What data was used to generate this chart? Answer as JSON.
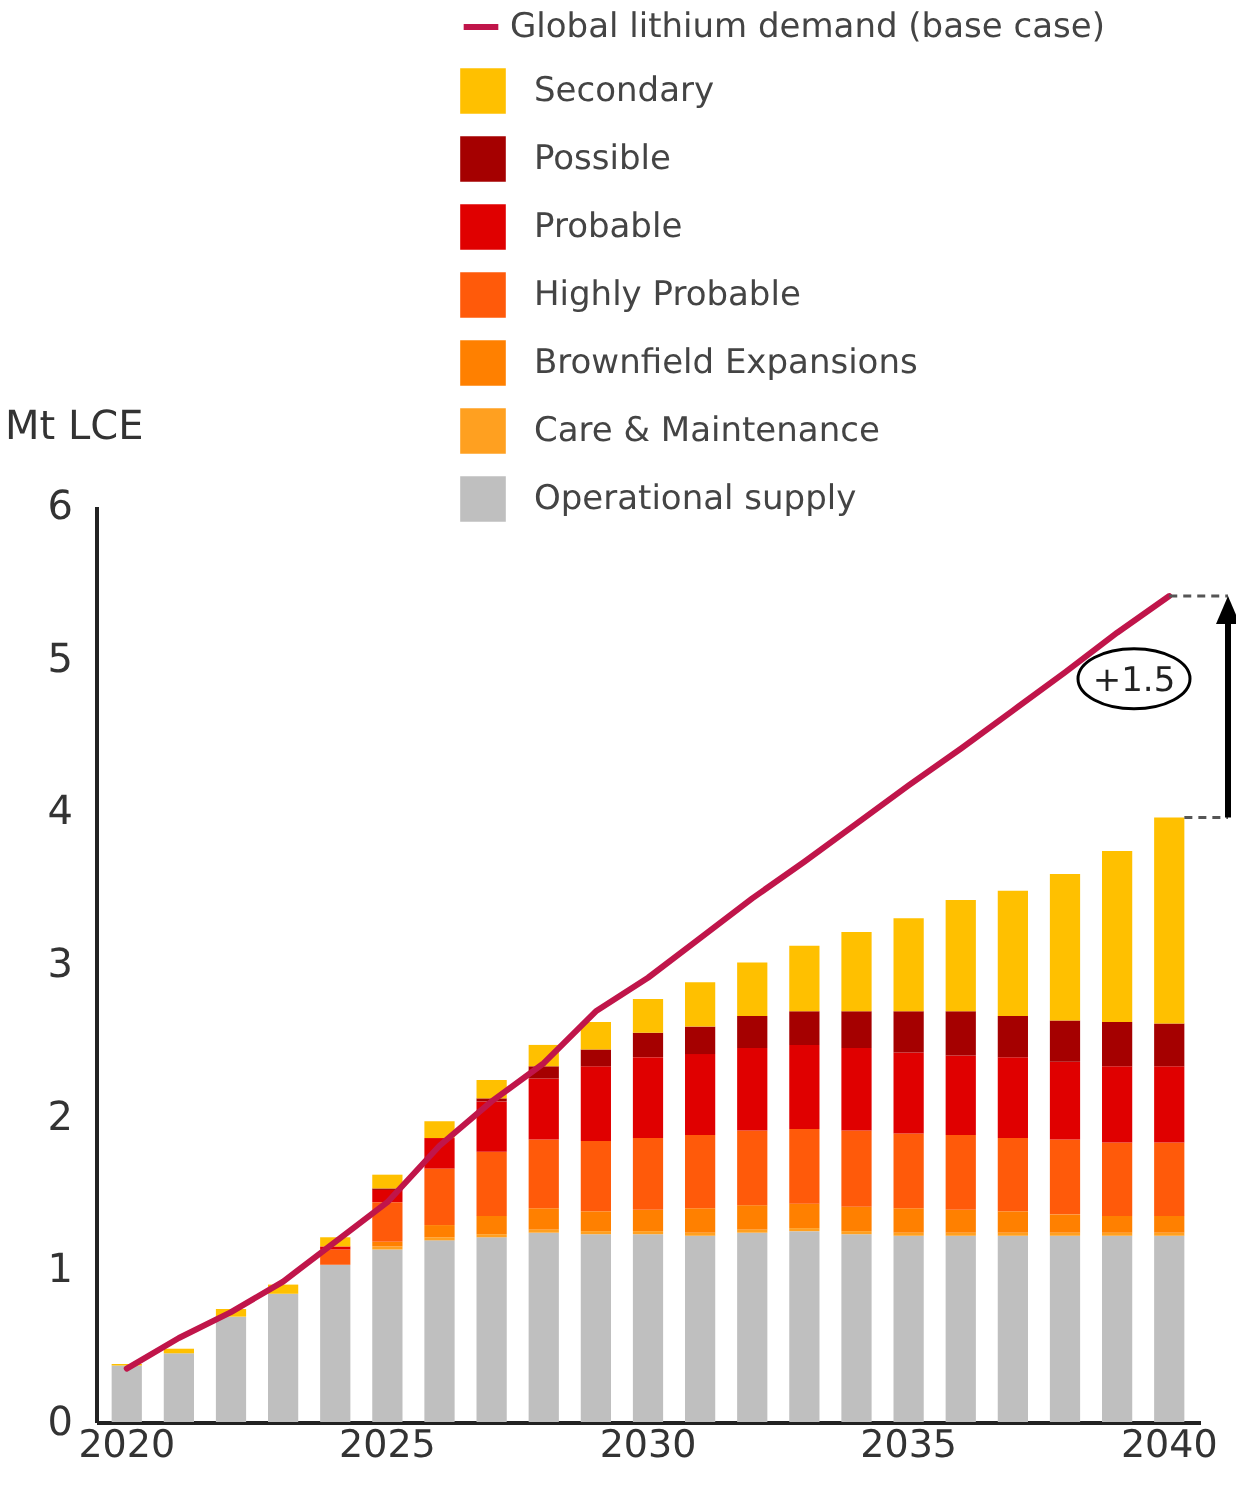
{
  "chart_data": {
    "type": "bar",
    "stacked": true,
    "ylabel": "Mt LCE",
    "ylim": [
      0,
      6
    ],
    "yticks": [
      0,
      1,
      2,
      3,
      4,
      5,
      6
    ],
    "grid": false,
    "legend": "top right",
    "annotations": [
      "+1.5"
    ],
    "categories": [
      "2020",
      null,
      null,
      null,
      null,
      "2025",
      null,
      null,
      null,
      null,
      "2030",
      null,
      null,
      null,
      null,
      "2035",
      null,
      null,
      null,
      null,
      "2040"
    ],
    "series": [
      {
        "name": "Operational supply",
        "color": "#bfbfbf",
        "values": [
          0.37,
          0.45,
          0.69,
          0.84,
          1.03,
          1.13,
          1.19,
          1.21,
          1.24,
          1.23,
          1.23,
          1.22,
          1.24,
          1.25,
          1.23,
          1.22,
          1.22,
          1.22,
          1.22,
          1.22,
          1.22
        ]
      },
      {
        "name": "Care & Maintenance",
        "color": "#ffa020",
        "values": [
          null,
          null,
          null,
          null,
          null,
          0.02,
          0.02,
          0.02,
          0.02,
          0.02,
          0.02,
          0.02,
          0.02,
          0.02,
          0.02,
          0.02,
          0.02,
          0.02,
          0.02,
          0.02,
          0.02
        ]
      },
      {
        "name": "Brownfield Expansions",
        "color": "#ff8000",
        "values": [
          null,
          null,
          null,
          null,
          null,
          0.03,
          0.08,
          0.12,
          0.14,
          0.13,
          0.14,
          0.16,
          0.16,
          0.16,
          0.16,
          0.16,
          0.15,
          0.14,
          0.12,
          0.11,
          0.11
        ]
      },
      {
        "name": "Highly Probable",
        "color": "#ff5a0a",
        "values": [
          null,
          null,
          null,
          null,
          0.1,
          0.26,
          0.37,
          0.42,
          0.45,
          0.46,
          0.47,
          0.48,
          0.49,
          0.49,
          0.5,
          0.49,
          0.49,
          0.48,
          0.49,
          0.48,
          0.48
        ]
      },
      {
        "name": "Probable",
        "color": "#e00000",
        "values": [
          null,
          null,
          null,
          null,
          0.02,
          0.08,
          0.2,
          0.33,
          0.4,
          0.49,
          0.53,
          0.53,
          0.54,
          0.55,
          0.54,
          0.53,
          0.52,
          0.53,
          0.51,
          0.5,
          0.5
        ]
      },
      {
        "name": "Possible",
        "color": "#a50000",
        "values": [
          null,
          null,
          null,
          null,
          null,
          0.01,
          null,
          0.02,
          0.08,
          0.11,
          0.16,
          0.18,
          0.21,
          0.22,
          0.24,
          0.27,
          0.29,
          0.27,
          0.27,
          0.29,
          0.28
        ]
      },
      {
        "name": "Secondary",
        "color": "#ffc000",
        "values": [
          0.01,
          0.03,
          0.05,
          0.06,
          0.06,
          0.09,
          0.11,
          0.12,
          0.14,
          0.18,
          0.22,
          0.29,
          0.35,
          0.43,
          0.52,
          0.61,
          0.73,
          0.82,
          0.96,
          1.12,
          1.35
        ]
      },
      {
        "name": "Global lithium demand (base case)",
        "type": "line",
        "color": "#c0154a",
        "values": [
          0.35,
          0.55,
          0.72,
          0.92,
          1.18,
          1.44,
          1.81,
          2.1,
          2.35,
          2.69,
          2.91,
          3.17,
          3.43,
          3.67,
          3.92,
          4.17,
          4.41,
          4.66,
          4.91,
          5.17,
          5.41
        ]
      }
    ]
  }
}
